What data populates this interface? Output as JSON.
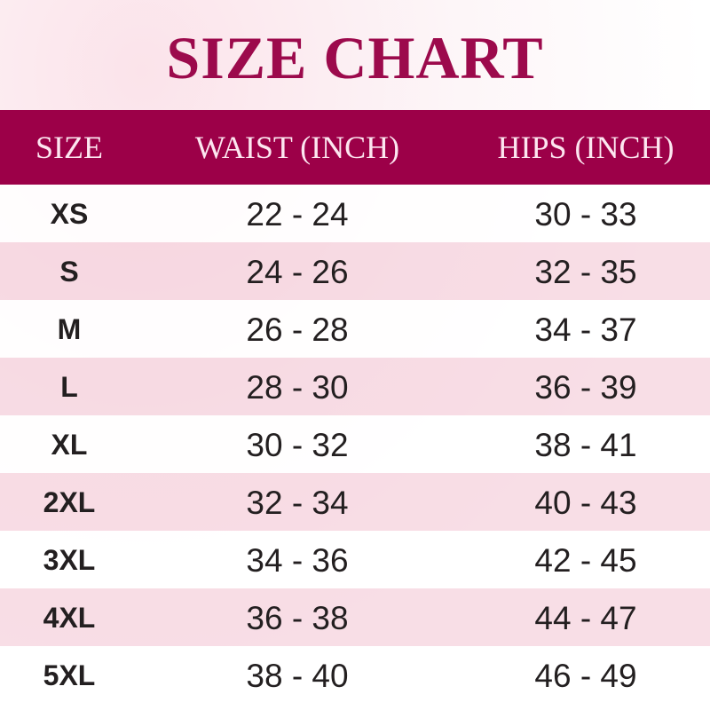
{
  "title": "SIZE CHART",
  "colors": {
    "accent": "#9c0048",
    "header_text": "#fde6f0",
    "row_alt": "#f6dbe3",
    "text": "#231f20"
  },
  "columns": [
    "SIZE",
    "WAIST (INCH)",
    "HIPS (INCH)"
  ],
  "rows": [
    [
      "XS",
      "22 - 24",
      "30 - 33"
    ],
    [
      "S",
      "24 - 26",
      "32 - 35"
    ],
    [
      "M",
      "26 - 28",
      "34 - 37"
    ],
    [
      "L",
      "28 - 30",
      "36 - 39"
    ],
    [
      "XL",
      "30 - 32",
      "38 - 41"
    ],
    [
      "2XL",
      "32 - 34",
      "40 - 43"
    ],
    [
      "3XL",
      "34 - 36",
      "42 - 45"
    ],
    [
      "4XL",
      "36 - 38",
      "44 - 47"
    ],
    [
      "5XL",
      "38 - 40",
      "46 - 49"
    ]
  ]
}
